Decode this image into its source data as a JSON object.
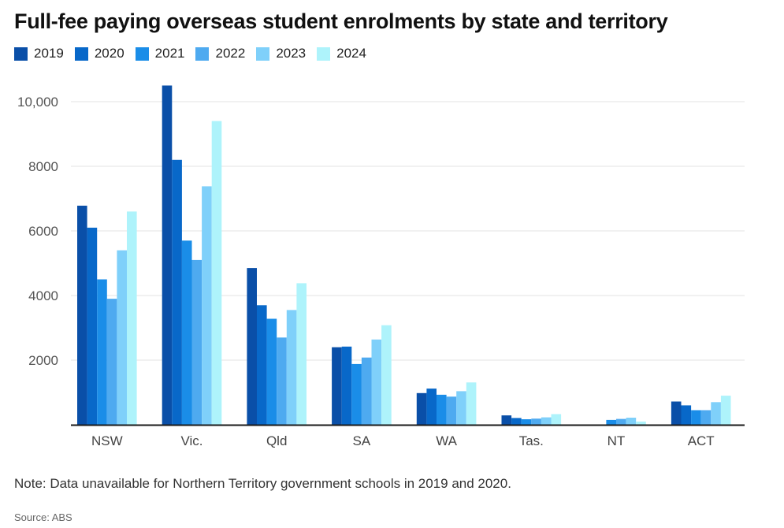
{
  "chart_data": {
    "type": "bar",
    "title": "Full-fee paying overseas student enrolments by state and territory",
    "categories": [
      "NSW",
      "Vic.",
      "Qld",
      "SA",
      "WA",
      "Tas.",
      "NT",
      "ACT"
    ],
    "series": [
      {
        "name": "2019",
        "color": "#0a4fa8",
        "values": [
          6780,
          10500,
          4850,
          2400,
          980,
          290,
          null,
          720
        ]
      },
      {
        "name": "2020",
        "color": "#0868c9",
        "values": [
          6100,
          8200,
          3700,
          2420,
          1120,
          210,
          null,
          600
        ]
      },
      {
        "name": "2021",
        "color": "#1a8de8",
        "values": [
          4500,
          5700,
          3280,
          1880,
          930,
          170,
          150,
          450
        ]
      },
      {
        "name": "2022",
        "color": "#4eaaf0",
        "values": [
          3900,
          5100,
          2700,
          2080,
          870,
          190,
          180,
          450
        ]
      },
      {
        "name": "2023",
        "color": "#7fd0fa",
        "values": [
          5400,
          7380,
          3550,
          2640,
          1040,
          230,
          220,
          700
        ]
      },
      {
        "name": "2024",
        "color": "#aef3fb",
        "values": [
          6600,
          9400,
          4380,
          3080,
          1310,
          330,
          100,
          900
        ]
      }
    ],
    "yticks": [
      2000,
      4000,
      6000,
      8000,
      10000
    ],
    "ytick_labels": [
      "2000",
      "4000",
      "6000",
      "8000",
      "10,000"
    ],
    "ylim": [
      0,
      11000
    ],
    "grid": true,
    "legend": "top-left"
  },
  "note": "Note: Data unavailable for Northern Territory government schools in 2019 and 2020.",
  "source": "Source: ABS"
}
